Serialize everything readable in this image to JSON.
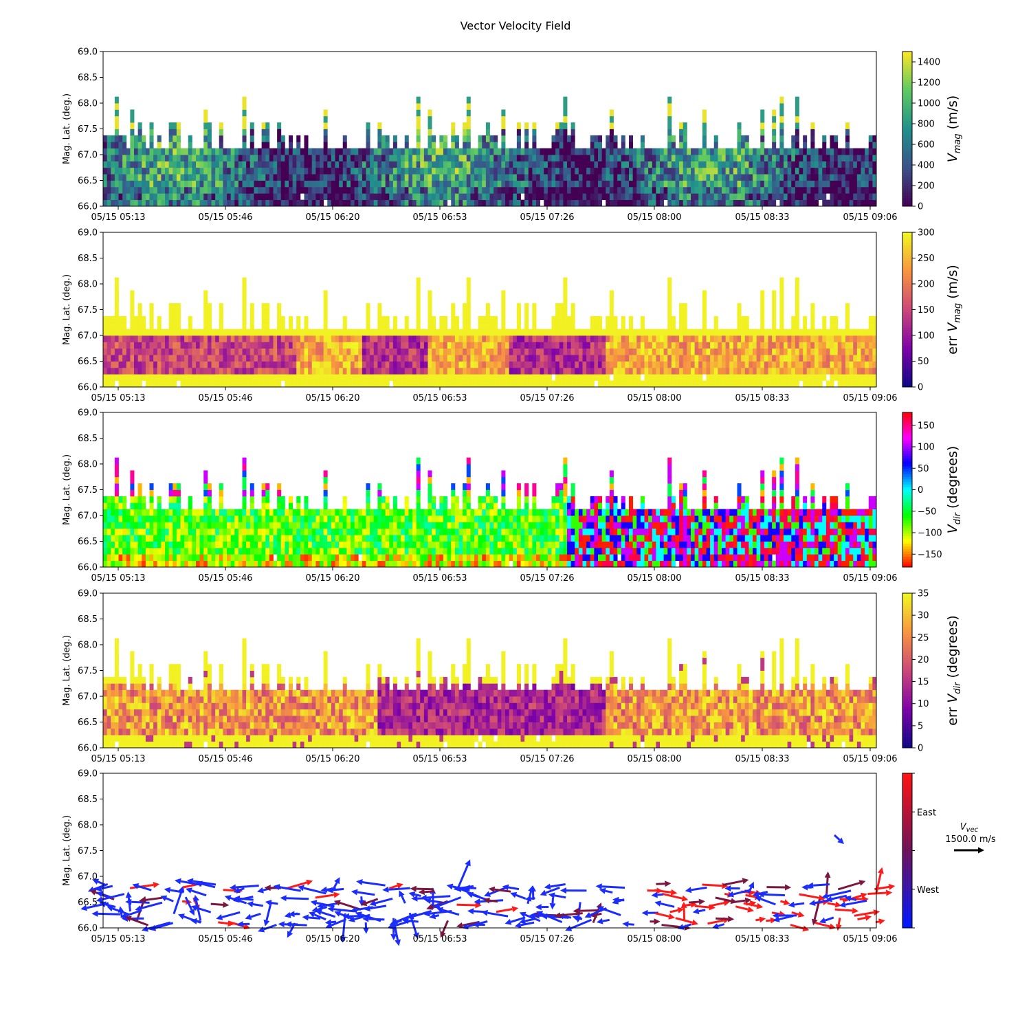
{
  "figure_title": "Vector Velocity Field",
  "chart_data": [
    {
      "type": "heatmap",
      "id": "vmag",
      "ylabel": "Mag. Lat. (deg.)",
      "ylim": [
        66.0,
        69.0
      ],
      "yticks": [
        "66.0",
        "66.5",
        "67.0",
        "67.5",
        "68.0",
        "68.5",
        "69.0"
      ],
      "xticks": [
        "05/15 05:13",
        "05/15 05:46",
        "05/15 06:20",
        "05/15 06:53",
        "05/15 07:26",
        "05/15 08:00",
        "05/15 08:33",
        "05/15 09:06"
      ],
      "colorbar": {
        "label_main": "V",
        "label_sub": "mag",
        "label_unit": " (m/s)",
        "label_prefix": "",
        "range": [
          0,
          1500
        ],
        "ticks": [
          "0",
          "200",
          "400",
          "600",
          "800",
          "1000",
          "1200",
          "1400"
        ],
        "colormap": "viridis"
      }
    },
    {
      "type": "heatmap",
      "id": "err_vmag",
      "ylabel": "Mag. Lat. (deg.)",
      "ylim": [
        66.0,
        69.0
      ],
      "yticks": [
        "66.0",
        "66.5",
        "67.0",
        "67.5",
        "68.0",
        "68.5",
        "69.0"
      ],
      "xticks": [
        "05/15 05:13",
        "05/15 05:46",
        "05/15 06:20",
        "05/15 06:53",
        "05/15 07:26",
        "05/15 08:00",
        "05/15 08:33",
        "05/15 09:06"
      ],
      "colorbar": {
        "label_main": "V",
        "label_sub": "mag",
        "label_unit": " (m/s)",
        "label_prefix": "err ",
        "range": [
          0,
          300
        ],
        "ticks": [
          "0",
          "50",
          "100",
          "150",
          "200",
          "250",
          "300"
        ],
        "colormap": "plasma"
      }
    },
    {
      "type": "heatmap",
      "id": "vdir",
      "ylabel": "Mag. Lat. (deg.)",
      "ylim": [
        66.0,
        69.0
      ],
      "yticks": [
        "66.0",
        "66.5",
        "67.0",
        "67.5",
        "68.0",
        "68.5",
        "69.0"
      ],
      "xticks": [
        "05/15 05:13",
        "05/15 05:46",
        "05/15 06:20",
        "05/15 06:53",
        "05/15 07:26",
        "05/15 08:00",
        "05/15 08:33",
        "05/15 09:06"
      ],
      "colorbar": {
        "label_main": "V",
        "label_sub": "dir",
        "label_unit": " (degrees)",
        "label_prefix": "",
        "range": [
          -180,
          180
        ],
        "ticks": [
          "−150",
          "−100",
          "−50",
          "0",
          "50",
          "100",
          "150"
        ],
        "colormap": "hsv"
      }
    },
    {
      "type": "heatmap",
      "id": "err_vdir",
      "ylabel": "Mag. Lat. (deg.)",
      "ylim": [
        66.0,
        69.0
      ],
      "yticks": [
        "66.0",
        "66.5",
        "67.0",
        "67.5",
        "68.0",
        "68.5",
        "69.0"
      ],
      "xticks": [
        "05/15 05:13",
        "05/15 05:46",
        "05/15 06:20",
        "05/15 06:53",
        "05/15 07:26",
        "05/15 08:00",
        "05/15 08:33",
        "05/15 09:06"
      ],
      "colorbar": {
        "label_main": "V",
        "label_sub": "dir",
        "label_unit": " (degrees)",
        "label_prefix": "err ",
        "range": [
          0,
          35
        ],
        "ticks": [
          "0",
          "5",
          "10",
          "15",
          "20",
          "25",
          "30",
          "35"
        ],
        "colormap": "plasma"
      }
    },
    {
      "type": "quiver",
      "id": "vvec",
      "ylabel": "Mag. Lat. (deg.)",
      "ylim": [
        66.0,
        69.0
      ],
      "yticks": [
        "66.0",
        "66.5",
        "67.0",
        "67.5",
        "68.0",
        "68.5",
        "69.0"
      ],
      "xticks": [
        "05/15 05:13",
        "05/15 05:46",
        "05/15 06:20",
        "05/15 06:53",
        "05/15 07:26",
        "05/15 08:00",
        "05/15 08:33",
        "05/15 09:06"
      ],
      "colorbar": {
        "ticks": [
          "East",
          "West"
        ],
        "colormap": "blue-red"
      },
      "key": {
        "label_main": "V",
        "label_sub": "vec",
        "value": "1500.0 m/s"
      }
    }
  ],
  "colors": {
    "east": "#ff1a1a",
    "west": "#1a2cff"
  }
}
